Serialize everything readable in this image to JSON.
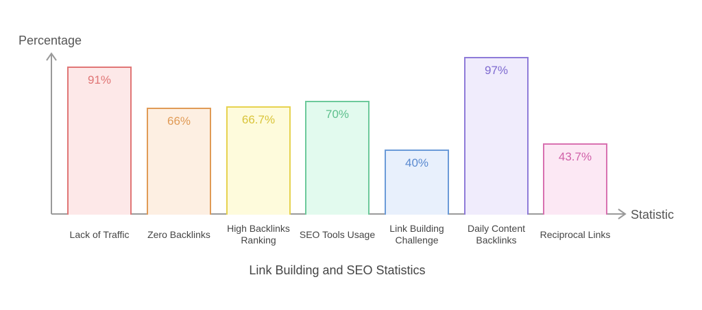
{
  "chart_data": {
    "type": "bar",
    "title": "Link Building and SEO Statistics",
    "xlabel": "Statistic",
    "ylabel": "Percentage",
    "ylim": [
      0,
      100
    ],
    "grid": false,
    "categories": [
      "Lack of Traffic",
      "Zero Backlinks",
      "High Backlinks Ranking",
      "SEO Tools Usage",
      "Link Building Challenge",
      "Daily Content Backlinks",
      "Reciprocal Links"
    ],
    "values": [
      91,
      66,
      66.7,
      70,
      40,
      97,
      43.7
    ],
    "value_labels": [
      "91%",
      "66%",
      "66.7%",
      "70%",
      "40%",
      "97%",
      "43.7%"
    ]
  },
  "bars": [
    {
      "label": "Lack of Traffic",
      "value_label": "91%",
      "border": "#e07575",
      "fill": "#fde8e8",
      "text": "#e07575"
    },
    {
      "label": "Zero Backlinks",
      "value_label": "66%",
      "border": "#e09a55",
      "fill": "#fdefe2",
      "text": "#e09a55"
    },
    {
      "label": "High Backlinks Ranking",
      "value_label": "66.7%",
      "border": "#e6d24e",
      "fill": "#fefbdc",
      "text": "#d9c43a"
    },
    {
      "label": "SEO Tools Usage",
      "value_label": "70%",
      "border": "#6cc99a",
      "fill": "#e2faee",
      "text": "#5cbf8c"
    },
    {
      "label": "Link Building Challenge",
      "value_label": "40%",
      "border": "#6a9ad8",
      "fill": "#e8f0fc",
      "text": "#5a8ad0"
    },
    {
      "label": "Daily Content Backlinks",
      "value_label": "97%",
      "border": "#8e7ad8",
      "fill": "#f0ecfc",
      "text": "#7e6ad0"
    },
    {
      "label": "Reciprocal Links",
      "value_label": "43.7%",
      "border": "#d870b0",
      "fill": "#fce8f4",
      "text": "#d060a8"
    }
  ],
  "category_lines": [
    [
      "Lack of Traffic"
    ],
    [
      "Zero Backlinks"
    ],
    [
      "High Backlinks",
      "Ranking"
    ],
    [
      "SEO Tools Usage"
    ],
    [
      "Link Building",
      "Challenge"
    ],
    [
      "Daily Content",
      "Backlinks"
    ],
    [
      "Reciprocal Links"
    ]
  ]
}
